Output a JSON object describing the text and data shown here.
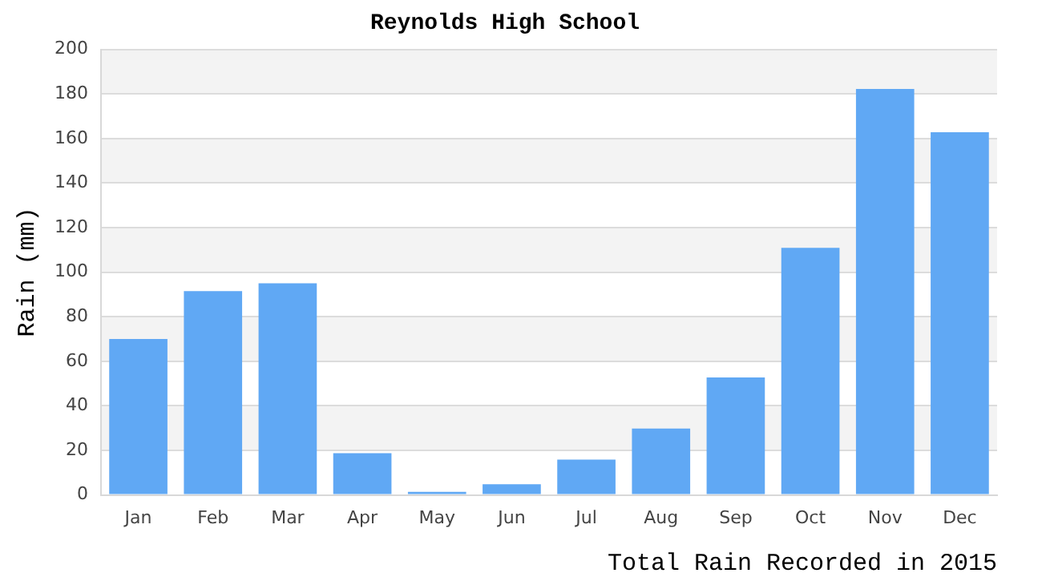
{
  "chart_data": {
    "type": "bar",
    "title": "Reynolds High School",
    "xlabel": "Total Rain Recorded in 2015",
    "ylabel": "Rain (mm)",
    "categories": [
      "Jan",
      "Feb",
      "Mar",
      "Apr",
      "May",
      "Jun",
      "Jul",
      "Aug",
      "Sep",
      "Oct",
      "Nov",
      "Dec"
    ],
    "values": [
      70,
      91.5,
      95,
      18.7,
      1.4,
      4.8,
      15.9,
      29.8,
      52.7,
      110.9,
      182.2,
      162.8
    ],
    "color": "#60a8f4",
    "ylim": [
      0,
      200
    ],
    "yticks": [
      0,
      20,
      40,
      60,
      80,
      100,
      120,
      140,
      160,
      180,
      200
    ],
    "grid": "y",
    "legend": false
  }
}
